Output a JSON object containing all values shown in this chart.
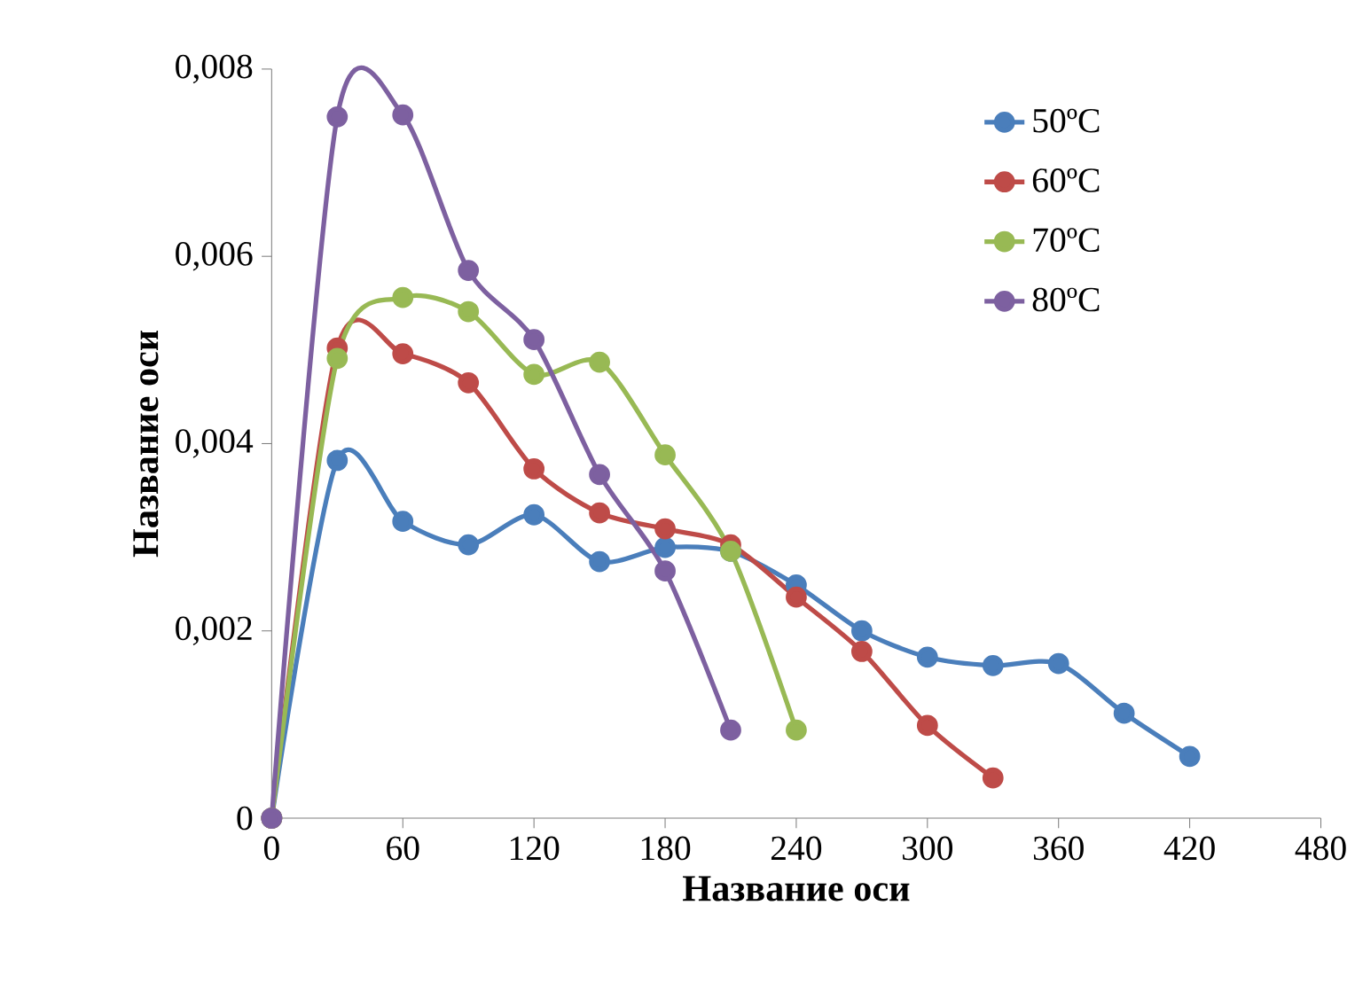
{
  "chart_data": {
    "type": "line",
    "xlabel": "Название оси",
    "ylabel": "Название оси",
    "x": [
      0,
      30,
      60,
      90,
      120,
      150,
      180,
      210,
      240,
      270,
      300,
      330,
      360,
      390,
      420
    ],
    "series": [
      {
        "name": "50ºC",
        "color": "#4a7ebb",
        "values": [
          0,
          0.00382,
          0.00317,
          0.00292,
          0.00324,
          0.00274,
          0.00289,
          0.00285,
          0.00249,
          0.002,
          0.00172,
          0.00163,
          0.00165,
          0.00112,
          0.00066
        ]
      },
      {
        "name": "60ºC",
        "color": "#be4b48",
        "values": [
          0,
          0.00502,
          0.00496,
          0.00465,
          0.00373,
          0.00326,
          0.00309,
          0.00292,
          0.00236,
          0.00178,
          0.00099,
          0.00043,
          null,
          null,
          null
        ]
      },
      {
        "name": "70ºC",
        "color": "#98b954",
        "values": [
          0,
          0.00491,
          0.00556,
          0.00541,
          0.00474,
          0.00487,
          0.00388,
          0.00285,
          0.00094,
          null,
          null,
          null,
          null,
          null,
          null
        ]
      },
      {
        "name": "80ºC",
        "color": "#7d60a0",
        "values": [
          0,
          0.00749,
          0.00751,
          0.00585,
          0.00511,
          0.00367,
          0.00264,
          0.00094,
          null,
          null,
          null,
          null,
          null,
          null,
          null
        ]
      }
    ],
    "xlim": [
      0,
      480
    ],
    "xticks": [
      0,
      60,
      120,
      180,
      240,
      300,
      360,
      420,
      480
    ],
    "ylim": [
      0,
      0.008
    ],
    "yticks": [
      0,
      {
        "value": 0.002,
        "label": "0,002"
      },
      {
        "value": 0.004,
        "label": "0,004"
      },
      {
        "value": 0.006,
        "label": "0,006"
      },
      {
        "value": 0.008,
        "label": "0,008"
      }
    ],
    "grid": false,
    "legend": "top right",
    "marker": "circle",
    "line_style": "solid"
  }
}
